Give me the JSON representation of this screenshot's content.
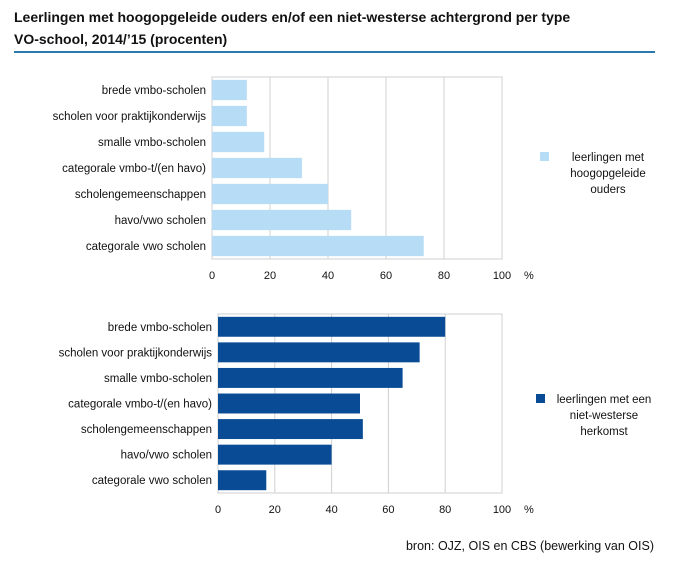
{
  "title_line1": "Leerlingen met hoogopgeleide ouders en/of een niet-westerse achtergrond per type",
  "title_line2": "VO-school, 2014/’15 (procenten)",
  "source": "bron: OJZ, OIS en CBS (bewerking van OIS)",
  "chart_data": [
    {
      "type": "bar",
      "orientation": "horizontal",
      "categories": [
        "brede vmbo-scholen",
        "scholen voor praktijkonderwijs",
        "smalle vmbo-scholen",
        "categorale vmbo-t/(en havo)",
        "scholengemeenschappen",
        "havo/vwo scholen",
        "categorale vwo scholen"
      ],
      "series": [
        {
          "name": "leerlingen met hoogopgeleide ouders",
          "values": [
            12,
            12,
            18,
            31,
            40,
            48,
            73
          ]
        }
      ],
      "legend_lines": [
        "leerlingen met",
        "hoogopgeleide",
        "ouders"
      ],
      "color": "#b7dcf5",
      "xlim": [
        0,
        100
      ],
      "xticks": [
        "0",
        "20",
        "40",
        "60",
        "80",
        "100"
      ],
      "unit": "%",
      "grid": true,
      "legend_position": "right"
    },
    {
      "type": "bar",
      "orientation": "horizontal",
      "categories": [
        "brede vmbo-scholen",
        "scholen voor praktijkonderwijs",
        "smalle vmbo-scholen",
        "categorale vmbo-t/(en havo)",
        "scholengemeenschappen",
        "havo/vwo scholen",
        "categorale vwo scholen"
      ],
      "series": [
        {
          "name": "leerlingen met een niet-westerse herkomst",
          "values": [
            80,
            71,
            65,
            50,
            51,
            40,
            17
          ]
        }
      ],
      "legend_lines": [
        "leerlingen met een",
        "niet-westerse",
        "herkomst"
      ],
      "color": "#0a4b96",
      "xlim": [
        0,
        100
      ],
      "xticks": [
        "0",
        "20",
        "40",
        "60",
        "80",
        "100"
      ],
      "unit": "%",
      "grid": true,
      "legend_position": "right"
    }
  ]
}
